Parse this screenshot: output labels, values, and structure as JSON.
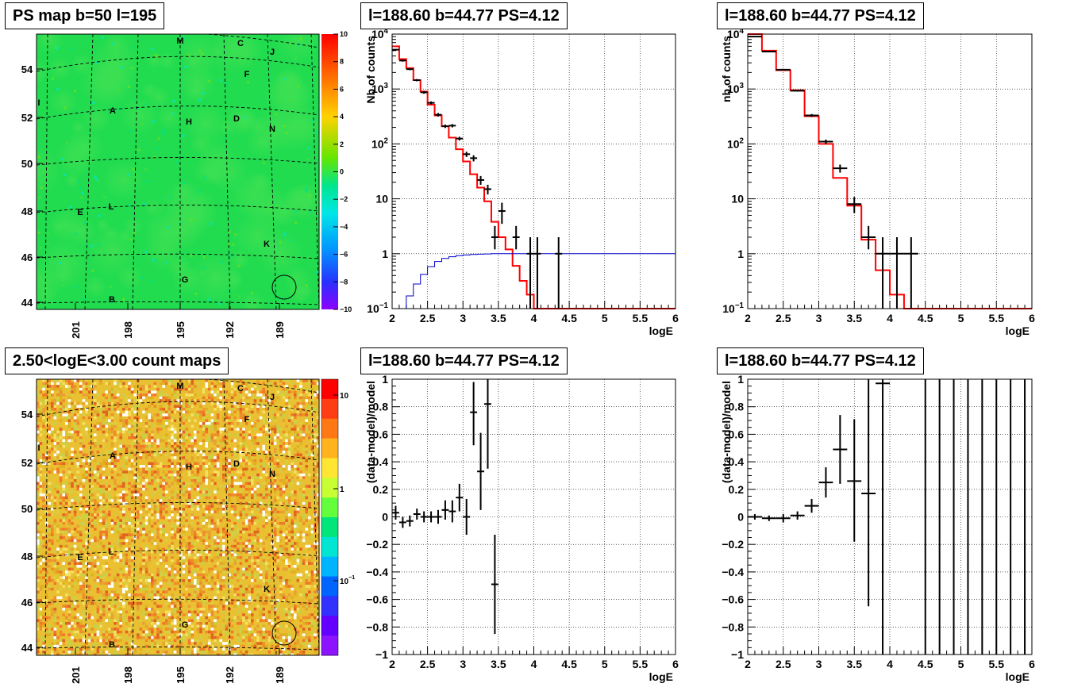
{
  "chart_data": [
    {
      "id": "psmap",
      "type": "heatmap",
      "title": "PS map b=50 l=195",
      "xticks": [
        "201",
        "198",
        "195",
        "192",
        "189"
      ],
      "yticks": [
        "54",
        "52",
        "50",
        "48",
        "46",
        "44"
      ],
      "colorbar": {
        "ticks": [
          "10",
          "8",
          "6",
          "4",
          "2",
          "0",
          "−2",
          "−4",
          "−6",
          "−8",
          "−10"
        ],
        "range": [
          -10,
          10
        ]
      },
      "sources": [
        "M",
        "C",
        "J",
        "F",
        "I",
        "A",
        "H",
        "D",
        "N",
        "E",
        "L",
        "K",
        "G",
        "B"
      ],
      "colors": {
        "background": "#22dc50",
        "circle": "#000000"
      }
    },
    {
      "id": "spec1",
      "type": "line",
      "title": "l=188.60 b=44.77 PS=4.12",
      "xlabel": "logE",
      "ylabel": "Nb of counts",
      "xlim": [
        2,
        6
      ],
      "ylim": [
        0.1,
        10000
      ],
      "log_y": true,
      "xticks": [
        "2",
        "2.5",
        "3",
        "3.5",
        "4",
        "4.5",
        "5",
        "5.5",
        "6"
      ],
      "yticks": [
        "10^-1",
        "1",
        "10",
        "10^2",
        "10^3",
        "10^4"
      ],
      "series": [
        {
          "color": "#ff0000",
          "x": [
            2.0,
            2.1,
            2.2,
            2.3,
            2.4,
            2.5,
            2.6,
            2.7,
            2.8,
            2.9,
            3.0,
            3.1,
            3.2,
            3.3,
            3.4,
            3.5,
            3.6,
            3.7,
            3.8,
            3.9,
            4.0,
            6.0
          ],
          "y": [
            6000,
            3500,
            2400,
            1450,
            900,
            520,
            330,
            210,
            130,
            80,
            48,
            28,
            16,
            9.0,
            3.8,
            2.0,
            1.2,
            0.6,
            0.32,
            0.18,
            0.1,
            0.1
          ]
        },
        {
          "color": "#0000cc",
          "x": [
            2.0,
            2.1,
            2.2,
            2.3,
            2.4,
            2.5,
            2.6,
            2.7,
            2.8,
            2.9,
            3.0,
            3.1,
            3.2,
            3.3,
            3.4,
            3.5,
            3.6,
            6.0
          ],
          "y": [
            0.05,
            0.1,
            0.17,
            0.28,
            0.42,
            0.58,
            0.72,
            0.82,
            0.88,
            0.92,
            0.95,
            0.97,
            0.98,
            0.99,
            1.0,
            1.0,
            1.0,
            1.0
          ]
        }
      ],
      "data_points": {
        "x": [
          2.05,
          2.15,
          2.25,
          2.35,
          2.45,
          2.55,
          2.65,
          2.75,
          2.85,
          2.95,
          3.05,
          3.15,
          3.25,
          3.35,
          3.45,
          3.55,
          3.75,
          3.95,
          4.05,
          4.35
        ],
        "y": [
          5200,
          3300,
          2300,
          1450,
          870,
          560,
          340,
          210,
          215,
          125,
          65,
          55,
          22,
          15,
          2,
          6,
          2,
          1,
          1,
          1
        ],
        "elo": [
          5000,
          3150,
          2200,
          1380,
          820,
          525,
          315,
          195,
          200,
          115,
          58,
          48,
          18,
          12,
          1.2,
          3.5,
          1.2,
          0.06,
          0.06,
          0.06
        ],
        "ehi": [
          5400,
          3450,
          2400,
          1520,
          920,
          595,
          365,
          225,
          230,
          135,
          72,
          62,
          26,
          18,
          3.2,
          8.5,
          3.2,
          2.0,
          2.0,
          2.0
        ]
      }
    },
    {
      "id": "spec2",
      "type": "line",
      "title": "l=188.60 b=44.77 PS=4.12",
      "xlabel": "logE",
      "ylabel": "nb of counts",
      "xlim": [
        2,
        6
      ],
      "ylim": [
        0.1,
        10000
      ],
      "log_y": true,
      "xticks": [
        "2",
        "2.5",
        "3",
        "3.5",
        "4",
        "4.5",
        "5",
        "5.5",
        "6"
      ],
      "yticks": [
        "10^-1",
        "1",
        "10",
        "10^2",
        "10^3",
        "10^4"
      ],
      "series": [
        {
          "color": "#ff0000",
          "x": [
            2.0,
            2.2,
            2.4,
            2.6,
            2.8,
            3.0,
            3.2,
            3.4,
            3.6,
            3.8,
            4.0,
            4.2,
            6.0
          ],
          "y": [
            10000,
            5000,
            2200,
            950,
            320,
            100,
            24,
            7.5,
            1.8,
            0.5,
            0.18,
            0.1,
            0.1
          ]
        }
      ],
      "data_points": {
        "x": [
          2.1,
          2.3,
          2.5,
          2.7,
          2.9,
          3.1,
          3.3,
          3.5,
          3.7,
          3.9,
          4.1,
          4.3
        ],
        "y": [
          9000,
          4800,
          2250,
          930,
          330,
          110,
          36,
          8,
          2,
          1,
          1,
          1
        ],
        "elo": [
          8800,
          4700,
          2200,
          900,
          310,
          100,
          30,
          5.5,
          1.2,
          0.06,
          0.06,
          0.06
        ],
        "ehi": [
          9200,
          4900,
          2300,
          960,
          350,
          120,
          42,
          10.8,
          3.2,
          2.0,
          2.0,
          2.0
        ]
      }
    },
    {
      "id": "countmap",
      "type": "heatmap",
      "title": "2.50<logE<3.00 count maps",
      "xticks": [
        "201",
        "198",
        "195",
        "192",
        "189"
      ],
      "yticks": [
        "54",
        "52",
        "50",
        "48",
        "46",
        "44"
      ],
      "colorbar": {
        "ticks": [
          "10",
          "1",
          "10^-1"
        ],
        "log": true
      },
      "sources": [
        "M",
        "C",
        "J",
        "F",
        "I",
        "A",
        "H",
        "D",
        "N",
        "E",
        "L",
        "K",
        "G",
        "B"
      ],
      "colors": {
        "dominant": "#e8c032"
      }
    },
    {
      "id": "resid1",
      "type": "scatter",
      "title": "l=188.60 b=44.77 PS=4.12",
      "xlabel": "logE",
      "ylabel": "(data-model)/model",
      "xlim": [
        2,
        6
      ],
      "ylim": [
        -1,
        1
      ],
      "xticks": [
        "2",
        "2.5",
        "3",
        "3.5",
        "4",
        "4.5",
        "5",
        "5.5",
        "6"
      ],
      "yticks": [
        "1",
        "0.8",
        "0.6",
        "0.4",
        "0.2",
        "0",
        "−0.2",
        "−0.4",
        "−0.6",
        "−0.8",
        "−1"
      ],
      "data_points": {
        "x": [
          2.05,
          2.15,
          2.25,
          2.35,
          2.45,
          2.55,
          2.65,
          2.75,
          2.85,
          2.95,
          3.05,
          3.15,
          3.25,
          3.35,
          3.45
        ],
        "y": [
          0.03,
          -0.04,
          -0.03,
          0.02,
          0.0,
          0.0,
          0.0,
          0.05,
          0.04,
          0.14,
          0.0,
          0.76,
          0.33,
          0.82,
          -0.49
        ],
        "elo": [
          -0.02,
          -0.08,
          -0.07,
          -0.02,
          -0.04,
          -0.04,
          -0.05,
          -0.02,
          -0.04,
          0.04,
          -0.13,
          0.52,
          0.05,
          0.35,
          -0.85
        ],
        "ehi": [
          0.08,
          0.0,
          0.01,
          0.06,
          0.04,
          0.04,
          0.05,
          0.12,
          0.12,
          0.24,
          0.13,
          0.98,
          0.61,
          1.0,
          -0.13
        ]
      }
    },
    {
      "id": "resid2",
      "type": "scatter",
      "title": "l=188.60 b=44.77 PS=4.12",
      "xlabel": "logE",
      "ylabel": "(data-model)/model",
      "xlim": [
        2,
        6
      ],
      "ylim": [
        -1,
        1
      ],
      "xticks": [
        "2",
        "2.5",
        "3",
        "3.5",
        "4",
        "4.5",
        "5",
        "5.5",
        "6"
      ],
      "yticks": [
        "1",
        "0.8",
        "0.6",
        "0.4",
        "0.2",
        "0",
        "−0.2",
        "−0.4",
        "−0.6",
        "−0.8",
        "−1"
      ],
      "data_points": {
        "x": [
          2.1,
          2.3,
          2.5,
          2.7,
          2.9,
          3.1,
          3.3,
          3.5,
          3.7,
          3.9
        ],
        "y": [
          0.0,
          -0.01,
          -0.01,
          0.01,
          0.08,
          0.25,
          0.49,
          0.26,
          0.17,
          0.97
        ],
        "elo": [
          -0.02,
          -0.03,
          -0.04,
          -0.02,
          0.03,
          0.14,
          0.24,
          -0.18,
          -0.65,
          -1.0
        ],
        "ehi": [
          0.02,
          0.01,
          0.02,
          0.04,
          0.13,
          0.36,
          0.74,
          0.71,
          1.0,
          1.0
        ]
      },
      "vertical_bars_x": [
        4.5,
        4.7,
        4.9,
        5.1,
        5.3,
        5.5,
        5.7,
        5.9
      ]
    }
  ]
}
